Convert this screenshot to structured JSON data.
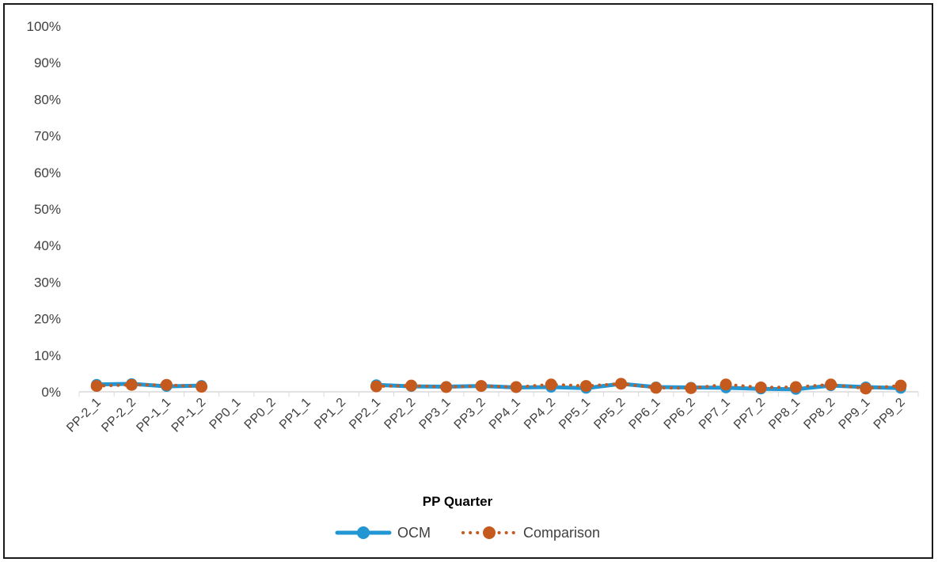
{
  "chart_data": {
    "type": "line",
    "title": "",
    "xlabel": "PP Quarter",
    "ylabel": "",
    "ylim": [
      0,
      1
    ],
    "y_ticks": [
      "0%",
      "10%",
      "20%",
      "30%",
      "40%",
      "50%",
      "60%",
      "70%",
      "80%",
      "90%",
      "100%"
    ],
    "categories": [
      "PP-2_1",
      "PP-2_2",
      "PP-1_1",
      "PP-1_2",
      "PP0_1",
      "PP0_2",
      "PP1_1",
      "PP1_2",
      "PP2_1",
      "PP2_2",
      "PP3_1",
      "PP3_2",
      "PP4_1",
      "PP4_2",
      "PP5_1",
      "PP5_2",
      "PP6_1",
      "PP6_2",
      "PP7_1",
      "PP7_2",
      "PP8_1",
      "PP8_2",
      "PP9_1",
      "PP9_2"
    ],
    "series": [
      {
        "name": "OCM",
        "color": "#2196D3",
        "style": "solid",
        "values": [
          0.02,
          0.022,
          0.015,
          0.017,
          null,
          null,
          null,
          null,
          0.019,
          0.015,
          0.014,
          0.016,
          0.012,
          0.013,
          0.01,
          0.022,
          0.013,
          0.012,
          0.011,
          0.008,
          0.007,
          0.017,
          0.013,
          0.01
        ]
      },
      {
        "name": "Comparison",
        "color": "#C55A1F",
        "style": "dotted",
        "values": [
          0.016,
          0.019,
          0.019,
          0.014,
          null,
          null,
          null,
          null,
          0.015,
          0.017,
          0.013,
          0.016,
          0.013,
          0.02,
          0.016,
          0.022,
          0.011,
          0.01,
          0.02,
          0.012,
          0.013,
          0.02,
          0.009,
          0.017
        ]
      }
    ],
    "grid": false,
    "legend": "bottom"
  }
}
